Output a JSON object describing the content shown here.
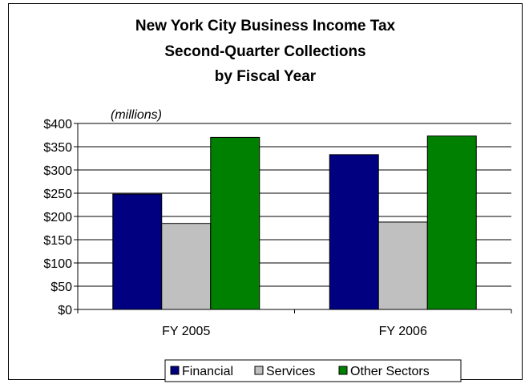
{
  "chart_data": {
    "type": "bar",
    "title_lines": [
      "New York City Business Income Tax",
      "Second-Quarter Collections",
      "by Fiscal Year"
    ],
    "units_label": "(millions)",
    "categories": [
      "FY 2005",
      "FY 2006"
    ],
    "series": [
      {
        "name": "Financial",
        "color": "#000080",
        "values": [
          248,
          333
        ]
      },
      {
        "name": "Services",
        "color": "#C0C0C0",
        "values": [
          185,
          188
        ]
      },
      {
        "name": "Other Sectors",
        "color": "#008000",
        "values": [
          370,
          373
        ]
      }
    ],
    "ylim": [
      0,
      400
    ],
    "y_ticks": [
      0,
      50,
      100,
      150,
      200,
      250,
      300,
      350,
      400
    ],
    "y_tick_labels": [
      "$0",
      "$50",
      "$100",
      "$150",
      "$200",
      "$250",
      "$300",
      "$350",
      "$400"
    ],
    "grid": true,
    "legend_position": "bottom"
  }
}
